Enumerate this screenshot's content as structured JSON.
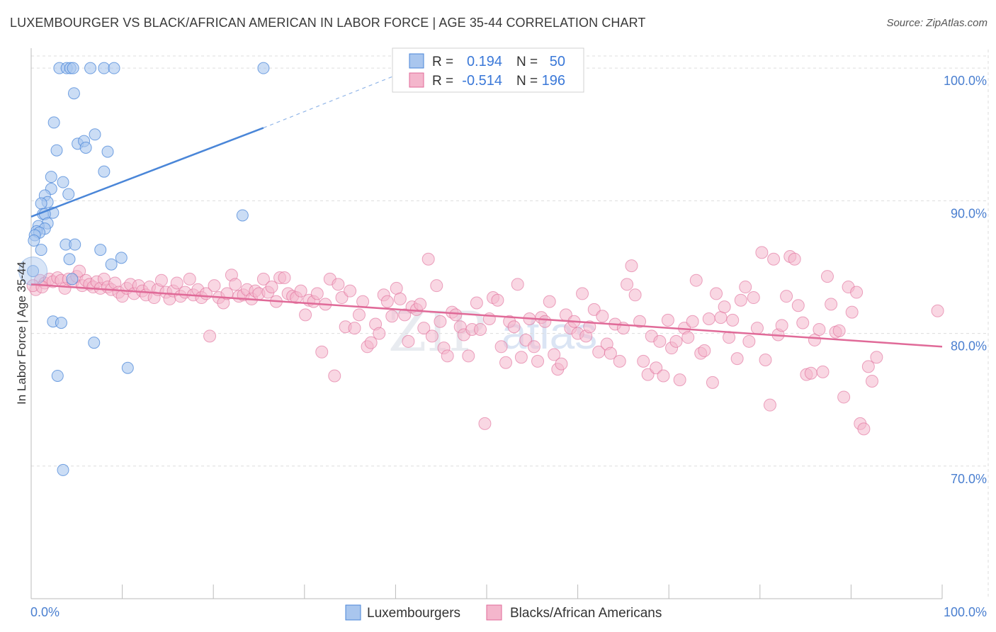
{
  "title": "LUXEMBOURGER VS BLACK/AFRICAN AMERICAN IN LABOR FORCE | AGE 35-44 CORRELATION CHART",
  "source": "Source: ZipAtlas.com",
  "watermark": {
    "zip": "ZIP",
    "atlas": "atlas"
  },
  "colors": {
    "blue": "#4a86d8",
    "blue_fill": "#a9c6ee",
    "pink": "#e06a98",
    "pink_fill": "#f4b6cc",
    "tick_text": "#4a7fd0",
    "grid": "#dddddd"
  },
  "legend_box": {
    "rows": [
      {
        "r_label": "R =",
        "r_value": "0.194",
        "n_label": "N =",
        "n_value": "50"
      },
      {
        "r_label": "R =",
        "r_value": "-0.514",
        "n_label": "N =",
        "n_value": "196"
      }
    ]
  },
  "bottom_legend": {
    "items": [
      "Luxembourgers",
      "Blacks/African Americans"
    ]
  },
  "chart_data": {
    "type": "scatter",
    "title": "LUXEMBOURGER VS BLACK/AFRICAN AMERICAN IN LABOR FORCE | AGE 35-44 CORRELATION CHART",
    "xlabel": "",
    "ylabel": "In Labor Force | Age 35-44",
    "xlim": [
      0,
      100
    ],
    "ylim": [
      60,
      103
    ],
    "x_tick_labels": [
      "0.0%",
      "100.0%"
    ],
    "y_ticks": [
      70,
      80,
      90,
      100
    ],
    "y_tick_labels": [
      "70.0%",
      "80.0%",
      "90.0%",
      "100.0%"
    ],
    "grid": true,
    "legend_position": "top-center",
    "series": [
      {
        "name": "Luxembourgers",
        "color": "#4a86d8",
        "R": 0.194,
        "N": 50,
        "trend": {
          "x0": 0.0,
          "y0": 88.8,
          "x1": 25.5,
          "y1": 95.5,
          "dash_to_x": 42.0,
          "dash_to_y": 100.0
        },
        "points": [
          [
            3.1,
            100
          ],
          [
            3.9,
            100
          ],
          [
            4.3,
            100
          ],
          [
            4.6,
            100
          ],
          [
            6.5,
            100
          ],
          [
            8.0,
            100
          ],
          [
            9.1,
            100
          ],
          [
            25.5,
            100
          ],
          [
            4.7,
            98.1
          ],
          [
            2.5,
            95.9
          ],
          [
            7.0,
            95.0
          ],
          [
            5.1,
            94.3
          ],
          [
            5.8,
            94.5
          ],
          [
            6.0,
            94.0
          ],
          [
            2.8,
            93.8
          ],
          [
            8.4,
            93.7
          ],
          [
            8.0,
            92.2
          ],
          [
            2.2,
            91.8
          ],
          [
            3.5,
            91.4
          ],
          [
            2.2,
            90.9
          ],
          [
            4.1,
            90.5
          ],
          [
            1.5,
            90.4
          ],
          [
            1.8,
            89.9
          ],
          [
            1.1,
            89.8
          ],
          [
            2.4,
            89.1
          ],
          [
            1.3,
            89.0
          ],
          [
            1.5,
            89.0
          ],
          [
            23.2,
            88.9
          ],
          [
            1.8,
            88.3
          ],
          [
            0.8,
            88.1
          ],
          [
            1.5,
            87.9
          ],
          [
            0.6,
            87.7
          ],
          [
            0.9,
            87.6
          ],
          [
            0.4,
            87.4
          ],
          [
            0.3,
            87.0
          ],
          [
            3.8,
            86.7
          ],
          [
            4.8,
            86.7
          ],
          [
            1.1,
            86.3
          ],
          [
            7.6,
            86.3
          ],
          [
            9.9,
            85.7
          ],
          [
            4.2,
            85.6
          ],
          [
            8.8,
            85.2
          ],
          [
            0.2,
            84.7
          ],
          [
            4.5,
            84.1
          ],
          [
            2.4,
            80.9
          ],
          [
            3.3,
            80.8
          ],
          [
            6.9,
            79.3
          ],
          [
            10.6,
            77.4
          ],
          [
            2.9,
            76.8
          ],
          [
            3.5,
            69.7
          ]
        ]
      },
      {
        "name": "Blacks/African Americans",
        "color": "#e06a98",
        "R": -0.514,
        "N": 196,
        "trend": {
          "x0": 0.0,
          "y0": 83.7,
          "x1": 100.0,
          "y1": 79.0
        },
        "points": [
          [
            0.5,
            83.3
          ],
          [
            1.0,
            84.0
          ],
          [
            1.5,
            83.8
          ],
          [
            2.0,
            84.1
          ],
          [
            2.4,
            83.9
          ],
          [
            2.9,
            84.2
          ],
          [
            3.3,
            84.0
          ],
          [
            3.7,
            83.4
          ],
          [
            4.1,
            84.1
          ],
          [
            4.6,
            83.9
          ],
          [
            5.0,
            84.3
          ],
          [
            5.3,
            84.7
          ],
          [
            5.6,
            83.6
          ],
          [
            6.0,
            84.0
          ],
          [
            6.4,
            83.7
          ],
          [
            6.8,
            83.5
          ],
          [
            7.2,
            83.9
          ],
          [
            7.6,
            83.4
          ],
          [
            8.0,
            84.1
          ],
          [
            8.4,
            83.5
          ],
          [
            8.8,
            83.3
          ],
          [
            9.2,
            83.8
          ],
          [
            9.6,
            83.1
          ],
          [
            10.0,
            82.8
          ],
          [
            10.5,
            83.4
          ],
          [
            10.9,
            83.7
          ],
          [
            11.3,
            83.0
          ],
          [
            11.8,
            83.6
          ],
          [
            12.2,
            83.2
          ],
          [
            12.6,
            82.9
          ],
          [
            13.0,
            83.5
          ],
          [
            13.5,
            82.7
          ],
          [
            13.9,
            83.3
          ],
          [
            14.3,
            84.0
          ],
          [
            14.8,
            83.1
          ],
          [
            15.2,
            82.6
          ],
          [
            15.6,
            83.2
          ],
          [
            16.0,
            83.8
          ],
          [
            16.4,
            82.8
          ],
          [
            16.9,
            83.1
          ],
          [
            17.4,
            84.1
          ],
          [
            17.8,
            82.9
          ],
          [
            18.3,
            83.3
          ],
          [
            18.7,
            82.7
          ],
          [
            19.2,
            83.0
          ],
          [
            19.6,
            79.8
          ],
          [
            20.1,
            83.6
          ],
          [
            20.6,
            82.7
          ],
          [
            21.1,
            82.3
          ],
          [
            21.5,
            83.0
          ],
          [
            22.0,
            84.4
          ],
          [
            22.4,
            83.7
          ],
          [
            22.8,
            82.8
          ],
          [
            23.3,
            82.9
          ],
          [
            23.7,
            83.3
          ],
          [
            24.2,
            82.6
          ],
          [
            24.6,
            83.2
          ],
          [
            25.0,
            83.0
          ],
          [
            25.5,
            84.1
          ],
          [
            26.0,
            83.1
          ],
          [
            26.4,
            83.5
          ],
          [
            26.9,
            82.4
          ],
          [
            27.3,
            84.2
          ],
          [
            27.8,
            84.2
          ],
          [
            28.2,
            83.0
          ],
          [
            28.7,
            82.8
          ],
          [
            29.1,
            82.7
          ],
          [
            29.6,
            83.2
          ],
          [
            30.1,
            81.4
          ],
          [
            30.5,
            82.5
          ],
          [
            31.0,
            82.4
          ],
          [
            31.4,
            83.0
          ],
          [
            31.9,
            78.6
          ],
          [
            32.3,
            82.2
          ],
          [
            32.8,
            84.1
          ],
          [
            33.3,
            76.8
          ],
          [
            33.7,
            83.7
          ],
          [
            34.1,
            82.7
          ],
          [
            34.5,
            80.5
          ],
          [
            35.0,
            83.2
          ],
          [
            35.5,
            80.4
          ],
          [
            36.0,
            81.4
          ],
          [
            36.4,
            82.4
          ],
          [
            36.9,
            79.0
          ],
          [
            37.3,
            79.3
          ],
          [
            37.8,
            80.7
          ],
          [
            38.2,
            80.0
          ],
          [
            38.7,
            82.9
          ],
          [
            39.1,
            82.4
          ],
          [
            39.6,
            81.3
          ],
          [
            40.1,
            83.4
          ],
          [
            40.5,
            82.6
          ],
          [
            41.0,
            81.4
          ],
          [
            41.4,
            79.4
          ],
          [
            41.8,
            82.0
          ],
          [
            42.3,
            81.8
          ],
          [
            42.7,
            82.2
          ],
          [
            43.1,
            80.4
          ],
          [
            43.6,
            85.6
          ],
          [
            44.0,
            79.8
          ],
          [
            44.5,
            83.6
          ],
          [
            44.9,
            80.9
          ],
          [
            45.3,
            78.9
          ],
          [
            45.7,
            78.3
          ],
          [
            46.2,
            81.6
          ],
          [
            46.6,
            81.4
          ],
          [
            47.1,
            80.5
          ],
          [
            47.5,
            79.9
          ],
          [
            48.0,
            78.3
          ],
          [
            48.4,
            80.3
          ],
          [
            48.9,
            82.3
          ],
          [
            49.3,
            80.3
          ],
          [
            49.8,
            73.2
          ],
          [
            50.3,
            81.1
          ],
          [
            50.7,
            82.7
          ],
          [
            51.2,
            82.5
          ],
          [
            51.6,
            79.0
          ],
          [
            52.1,
            77.8
          ],
          [
            52.5,
            80.9
          ],
          [
            53.0,
            80.5
          ],
          [
            53.4,
            83.7
          ],
          [
            53.8,
            78.2
          ],
          [
            54.3,
            79.5
          ],
          [
            54.7,
            81.1
          ],
          [
            55.2,
            79.0
          ],
          [
            55.6,
            77.9
          ],
          [
            56.0,
            81.2
          ],
          [
            56.4,
            80.9
          ],
          [
            56.9,
            82.4
          ],
          [
            57.4,
            78.4
          ],
          [
            57.8,
            77.3
          ],
          [
            58.2,
            77.7
          ],
          [
            58.7,
            81.4
          ],
          [
            59.2,
            80.4
          ],
          [
            59.6,
            80.9
          ],
          [
            60.0,
            80.0
          ],
          [
            60.5,
            83.0
          ],
          [
            60.9,
            79.8
          ],
          [
            61.3,
            80.5
          ],
          [
            61.8,
            81.8
          ],
          [
            62.3,
            78.6
          ],
          [
            62.7,
            81.3
          ],
          [
            63.2,
            79.2
          ],
          [
            63.6,
            78.5
          ],
          [
            64.1,
            80.7
          ],
          [
            64.6,
            77.9
          ],
          [
            65.0,
            80.4
          ],
          [
            65.4,
            83.7
          ],
          [
            65.9,
            85.1
          ],
          [
            66.3,
            82.9
          ],
          [
            66.8,
            80.9
          ],
          [
            67.2,
            77.9
          ],
          [
            67.7,
            76.9
          ],
          [
            68.1,
            79.8
          ],
          [
            68.6,
            77.4
          ],
          [
            69.0,
            79.4
          ],
          [
            69.4,
            76.8
          ],
          [
            69.9,
            81.0
          ],
          [
            70.3,
            78.9
          ],
          [
            70.8,
            79.4
          ],
          [
            71.2,
            76.5
          ],
          [
            71.7,
            80.4
          ],
          [
            72.1,
            79.7
          ],
          [
            72.6,
            80.9
          ],
          [
            73.0,
            84.0
          ],
          [
            73.5,
            78.5
          ],
          [
            73.9,
            78.7
          ],
          [
            74.4,
            81.1
          ],
          [
            74.8,
            76.3
          ],
          [
            75.2,
            83.0
          ],
          [
            75.7,
            81.2
          ],
          [
            76.1,
            82.0
          ],
          [
            76.6,
            79.7
          ],
          [
            77.0,
            81.0
          ],
          [
            77.5,
            78.1
          ],
          [
            77.9,
            82.5
          ],
          [
            78.4,
            83.5
          ],
          [
            78.8,
            79.4
          ],
          [
            79.3,
            82.7
          ],
          [
            79.7,
            80.4
          ],
          [
            80.2,
            86.1
          ],
          [
            80.6,
            78.0
          ],
          [
            81.1,
            74.6
          ],
          [
            81.5,
            85.6
          ],
          [
            82.0,
            79.9
          ],
          [
            82.4,
            80.6
          ],
          [
            82.9,
            82.8
          ],
          [
            83.3,
            85.8
          ],
          [
            83.8,
            85.6
          ],
          [
            84.2,
            82.1
          ],
          [
            84.7,
            80.8
          ],
          [
            85.1,
            76.9
          ],
          [
            85.6,
            77.0
          ],
          [
            86.0,
            79.5
          ],
          [
            86.5,
            80.3
          ],
          [
            86.9,
            77.1
          ],
          [
            87.4,
            84.3
          ],
          [
            87.8,
            82.2
          ],
          [
            88.3,
            80.1
          ],
          [
            88.7,
            80.2
          ],
          [
            89.2,
            75.2
          ],
          [
            89.7,
            83.5
          ],
          [
            90.1,
            81.6
          ],
          [
            90.6,
            83.1
          ],
          [
            91.0,
            73.2
          ],
          [
            91.4,
            72.8
          ],
          [
            91.9,
            77.5
          ],
          [
            92.3,
            76.4
          ],
          [
            92.8,
            78.2
          ],
          [
            99.5,
            81.7
          ],
          [
            0.2,
            83.6
          ],
          [
            1.2,
            83.5
          ]
        ]
      }
    ]
  }
}
